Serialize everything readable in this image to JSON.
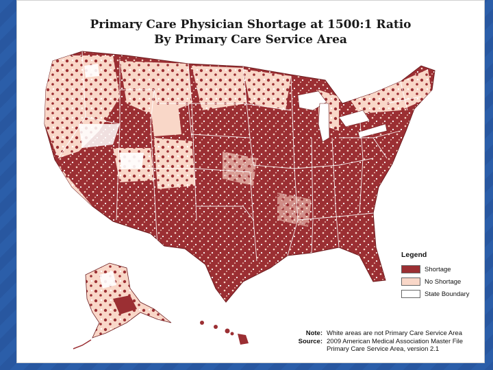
{
  "title": {
    "line1": "Primary Care Physician Shortage at 1500:1 Ratio",
    "line2": "By Primary Care Service Area"
  },
  "legend": {
    "title": "Legend",
    "items": [
      {
        "label": "Shortage",
        "color": "#9b2f33"
      },
      {
        "label": "No Shortage",
        "color": "#f9d7c8"
      },
      {
        "label": "State Boundary",
        "color": "#ffffff"
      }
    ]
  },
  "notes": {
    "note_key": "Note:",
    "note_text": "White areas are not Primary Care Service Area",
    "source_key": "Source:",
    "source_line1": "2009 American Medical Association Master File",
    "source_line2": "Primary Care Service Area, version 2.1"
  },
  "colors": {
    "shortage": "#9b2f33",
    "no_shortage": "#f9d7c8",
    "boundary": "#ffffff",
    "slide_bg": "#2a5aa8"
  }
}
